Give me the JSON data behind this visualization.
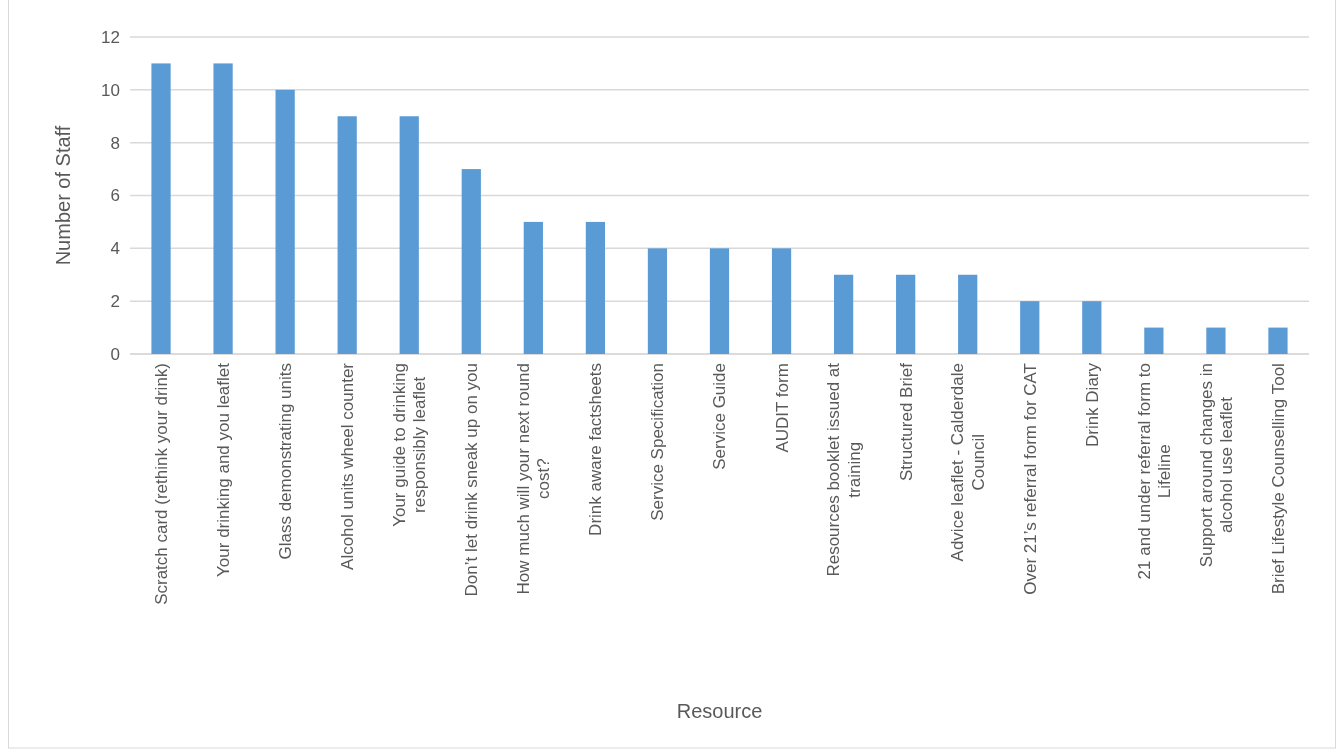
{
  "chart_data": {
    "type": "bar",
    "categories": [
      "Scratch card (rethink your drink)",
      "Your drinking and you leaflet",
      "Glass demonstrating units",
      "Alcohol units wheel counter",
      "Your guide to drinking responsibly leaflet",
      "Don’t let drink sneak up on you",
      "How much will your next round cost?",
      "Drink aware factsheets",
      "Service Specification",
      "Service Guide",
      "AUDIT form",
      "Resources booklet issued at training",
      "Structured Brief",
      "Advice leaflet - Calderdale Council",
      "Over 21’s referral form for CAT",
      "Drink Diary",
      "21 and under referral form to Lifeline",
      "Support around changes in alcohol use leaflet",
      "Brief Lifestyle Counselling Tool"
    ],
    "values": [
      11,
      11,
      10,
      9,
      9,
      7,
      5,
      5,
      4,
      4,
      4,
      3,
      3,
      3,
      2,
      2,
      1,
      1,
      1
    ],
    "color": "#5b9bd5",
    "xlabel": "Resource",
    "ylabel": "Number of Staff",
    "ylim": [
      0,
      12
    ],
    "yticks": [
      0,
      2,
      4,
      6,
      8,
      10,
      12
    ],
    "grid": "y"
  }
}
